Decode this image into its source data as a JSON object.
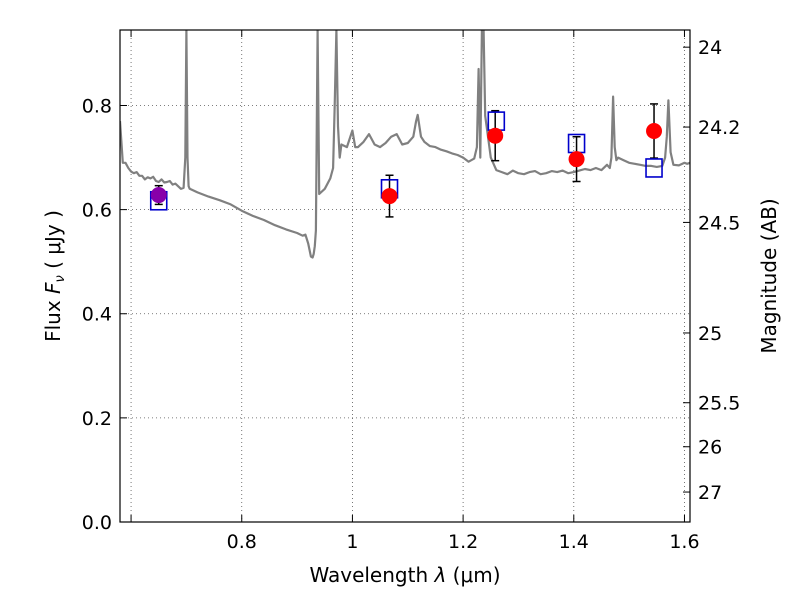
{
  "chart_data": {
    "type": "line",
    "title": "",
    "xlabel": "Wavelength  λ (μm)",
    "ylabel": "Flux  F_ν  ( μJy )",
    "ylabel_parts": {
      "prefix": "Flux ",
      "symbol": "F",
      "subscript": "ν",
      "suffix": " ( μJy )"
    },
    "xlabel_parts": {
      "prefix": "Wavelength ",
      "symbol": "λ",
      "suffix": " (μm)"
    },
    "y2label": "Magnitude (AB)",
    "xlim": [
      0.58,
      1.61
    ],
    "ylim": [
      0.0,
      0.945
    ],
    "grid": true,
    "x_ticks": [
      0.6,
      0.8,
      1.0,
      1.2,
      1.4,
      1.6
    ],
    "x_tick_labels": [
      "",
      "0.8",
      "1",
      "1.2",
      "1.4",
      "1.6"
    ],
    "y_ticks": [
      0.0,
      0.2,
      0.4,
      0.6,
      0.8
    ],
    "y_tick_labels": [
      "0.0",
      "0.2",
      "0.4",
      "0.6",
      "0.8"
    ],
    "mag_ticks": [
      24,
      24.2,
      24.5,
      25,
      25.5,
      26,
      27
    ],
    "mag_tick_labels": [
      "24",
      "24.2",
      "24.5",
      "25",
      "25.5",
      "26",
      "27"
    ],
    "series": [
      {
        "kind": "spectrum",
        "color": "#808080",
        "x": [
          0.58,
          0.585,
          0.59,
          0.595,
          0.6,
          0.605,
          0.61,
          0.615,
          0.62,
          0.625,
          0.63,
          0.635,
          0.64,
          0.645,
          0.65,
          0.655,
          0.66,
          0.665,
          0.67,
          0.675,
          0.68,
          0.685,
          0.69,
          0.695,
          0.698,
          0.7,
          0.702,
          0.704,
          0.706,
          0.71,
          0.72,
          0.74,
          0.76,
          0.78,
          0.8,
          0.82,
          0.84,
          0.86,
          0.88,
          0.9,
          0.91,
          0.915,
          0.92,
          0.925,
          0.928,
          0.93,
          0.932,
          0.934,
          0.937,
          0.94,
          0.95,
          0.96,
          0.965,
          0.968,
          0.971,
          0.974,
          0.977,
          0.98,
          0.99,
          1.0,
          1.005,
          1.01,
          1.02,
          1.03,
          1.04,
          1.05,
          1.06,
          1.07,
          1.08,
          1.09,
          1.1,
          1.11,
          1.115,
          1.118,
          1.121,
          1.124,
          1.13,
          1.14,
          1.15,
          1.16,
          1.17,
          1.18,
          1.19,
          1.2,
          1.21,
          1.22,
          1.225,
          1.228,
          1.231,
          1.234,
          1.237,
          1.24,
          1.25,
          1.26,
          1.27,
          1.28,
          1.29,
          1.3,
          1.31,
          1.32,
          1.33,
          1.34,
          1.35,
          1.36,
          1.37,
          1.38,
          1.39,
          1.4,
          1.41,
          1.42,
          1.43,
          1.44,
          1.45,
          1.46,
          1.465,
          1.468,
          1.471,
          1.474,
          1.477,
          1.48,
          1.49,
          1.5,
          1.51,
          1.52,
          1.53,
          1.54,
          1.55,
          1.56,
          1.565,
          1.568,
          1.571,
          1.575,
          1.58,
          1.59,
          1.6,
          1.605,
          1.61
        ],
        "y": [
          0.77,
          0.69,
          0.69,
          0.68,
          0.673,
          0.67,
          0.672,
          0.665,
          0.665,
          0.658,
          0.662,
          0.66,
          0.663,
          0.655,
          0.653,
          0.658,
          0.652,
          0.653,
          0.655,
          0.648,
          0.65,
          0.645,
          0.64,
          0.642,
          0.7,
          0.945,
          0.7,
          0.645,
          0.64,
          0.638,
          0.633,
          0.625,
          0.618,
          0.61,
          0.598,
          0.588,
          0.58,
          0.57,
          0.562,
          0.555,
          0.55,
          0.552,
          0.535,
          0.51,
          0.508,
          0.515,
          0.53,
          0.56,
          0.945,
          0.63,
          0.64,
          0.66,
          0.68,
          0.8,
          0.945,
          0.76,
          0.7,
          0.725,
          0.72,
          0.752,
          0.72,
          0.72,
          0.73,
          0.745,
          0.725,
          0.72,
          0.728,
          0.74,
          0.745,
          0.725,
          0.728,
          0.74,
          0.77,
          0.782,
          0.76,
          0.74,
          0.73,
          0.722,
          0.72,
          0.715,
          0.712,
          0.708,
          0.705,
          0.7,
          0.692,
          0.698,
          0.72,
          0.87,
          0.7,
          0.945,
          0.945,
          0.78,
          0.7,
          0.676,
          0.672,
          0.668,
          0.675,
          0.67,
          0.668,
          0.672,
          0.674,
          0.668,
          0.67,
          0.674,
          0.672,
          0.675,
          0.67,
          0.672,
          0.675,
          0.678,
          0.676,
          0.68,
          0.676,
          0.686,
          0.68,
          0.7,
          0.817,
          0.72,
          0.695,
          0.7,
          0.695,
          0.69,
          0.688,
          0.686,
          0.684,
          0.684,
          0.682,
          0.684,
          0.7,
          0.74,
          0.81,
          0.71,
          0.686,
          0.685,
          0.69,
          0.688,
          0.69
        ]
      },
      {
        "kind": "observed",
        "name": "",
        "color": "#ff0000",
        "x": [
          0.65,
          1.067,
          1.258,
          1.405,
          1.545
        ],
        "y": [
          0.628,
          0.626,
          0.742,
          0.697,
          0.751
        ],
        "yerr": [
          0.018,
          0.04,
          0.048,
          0.043,
          0.052
        ]
      },
      {
        "kind": "model-bandpass",
        "name": "",
        "color": "#0000cc",
        "x": [
          0.65,
          1.067,
          1.26,
          1.405,
          1.545
        ],
        "y": [
          0.617,
          0.64,
          0.77,
          0.727,
          0.68
        ]
      }
    ],
    "overlap_marker_color": "#8800aa"
  }
}
